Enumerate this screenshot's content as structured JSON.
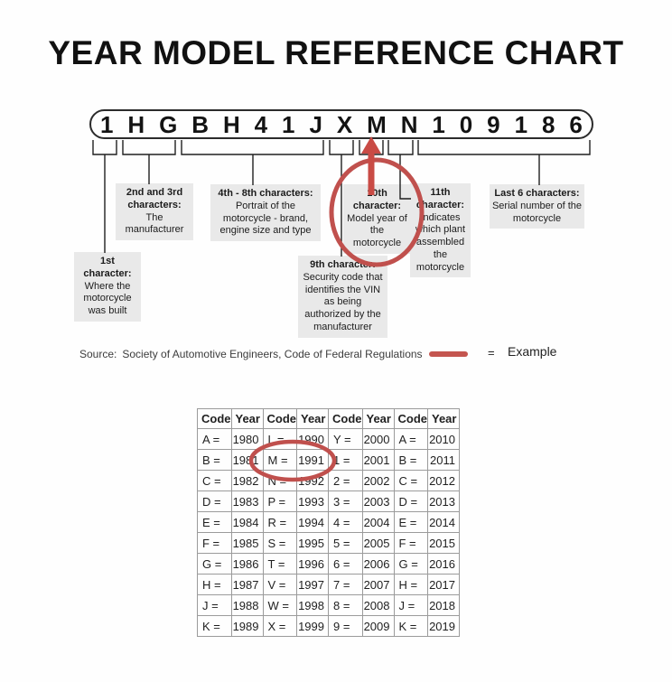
{
  "title": "YEAR MODEL REFERENCE CHART",
  "vin": {
    "characters": [
      "1",
      "H",
      "G",
      "B",
      "H",
      "4",
      "1",
      "J",
      "X",
      "M",
      "N",
      "1",
      "0",
      "9",
      "1",
      "8",
      "6"
    ]
  },
  "callouts": [
    {
      "header": "1st character:",
      "body": "Where the motorcycle was built"
    },
    {
      "header": "2nd and 3rd characters:",
      "body": "The manufacturer"
    },
    {
      "header": "4th - 8th characters:",
      "body": "Portrait of the motorcycle - brand, engine size and type"
    },
    {
      "header": "9th character:",
      "body": "Security code that identifies the VIN as being authorized by the manufacturer"
    },
    {
      "header": "10th character:",
      "body": "Model year of the motorcycle"
    },
    {
      "header": "11th character:",
      "body": "Indicates which plant assembled the motorcycle"
    },
    {
      "header": "Last 6 characters:",
      "body": "Serial number of the motorcycle"
    }
  ],
  "source": {
    "label": "Source:",
    "text": "Society of Automotive Engineers, Code of Federal Regulations"
  },
  "legend": {
    "equals": "=",
    "label": "Example"
  },
  "table": {
    "headers": [
      "Code",
      "Year",
      "Code",
      "Year",
      "Code",
      "Year",
      "Code",
      "Year"
    ],
    "rows": [
      [
        "A =",
        "1980",
        "L =",
        "1990",
        "Y =",
        "2000",
        "A =",
        "2010"
      ],
      [
        "B =",
        "1981",
        "M =",
        "1991",
        "1 =",
        "2001",
        "B =",
        "2011"
      ],
      [
        "C =",
        "1982",
        "N =",
        "1992",
        "2 =",
        "2002",
        "C =",
        "2012"
      ],
      [
        "D =",
        "1983",
        "P =",
        "1993",
        "3 =",
        "2003",
        "D =",
        "2013"
      ],
      [
        "E =",
        "1984",
        "R =",
        "1994",
        "4 =",
        "2004",
        "E =",
        "2014"
      ],
      [
        "F =",
        "1985",
        "S =",
        "1995",
        "5 =",
        "2005",
        "F =",
        "2015"
      ],
      [
        "G =",
        "1986",
        "T =",
        "1996",
        "6 =",
        "2006",
        "G =",
        "2016"
      ],
      [
        "H =",
        "1987",
        "V =",
        "1997",
        "7 =",
        "2007",
        "H =",
        "2017"
      ],
      [
        "J =",
        "1988",
        "W =",
        "1998",
        "8 =",
        "2008",
        "J =",
        "2018"
      ],
      [
        "K =",
        "1989",
        "X =",
        "1999",
        "9 =",
        "2009",
        "K =",
        "2019"
      ]
    ]
  },
  "colors": {
    "accent_red": "#c0504d",
    "label_bg": "#e9e9e9",
    "table_border": "#9b9b9b"
  }
}
